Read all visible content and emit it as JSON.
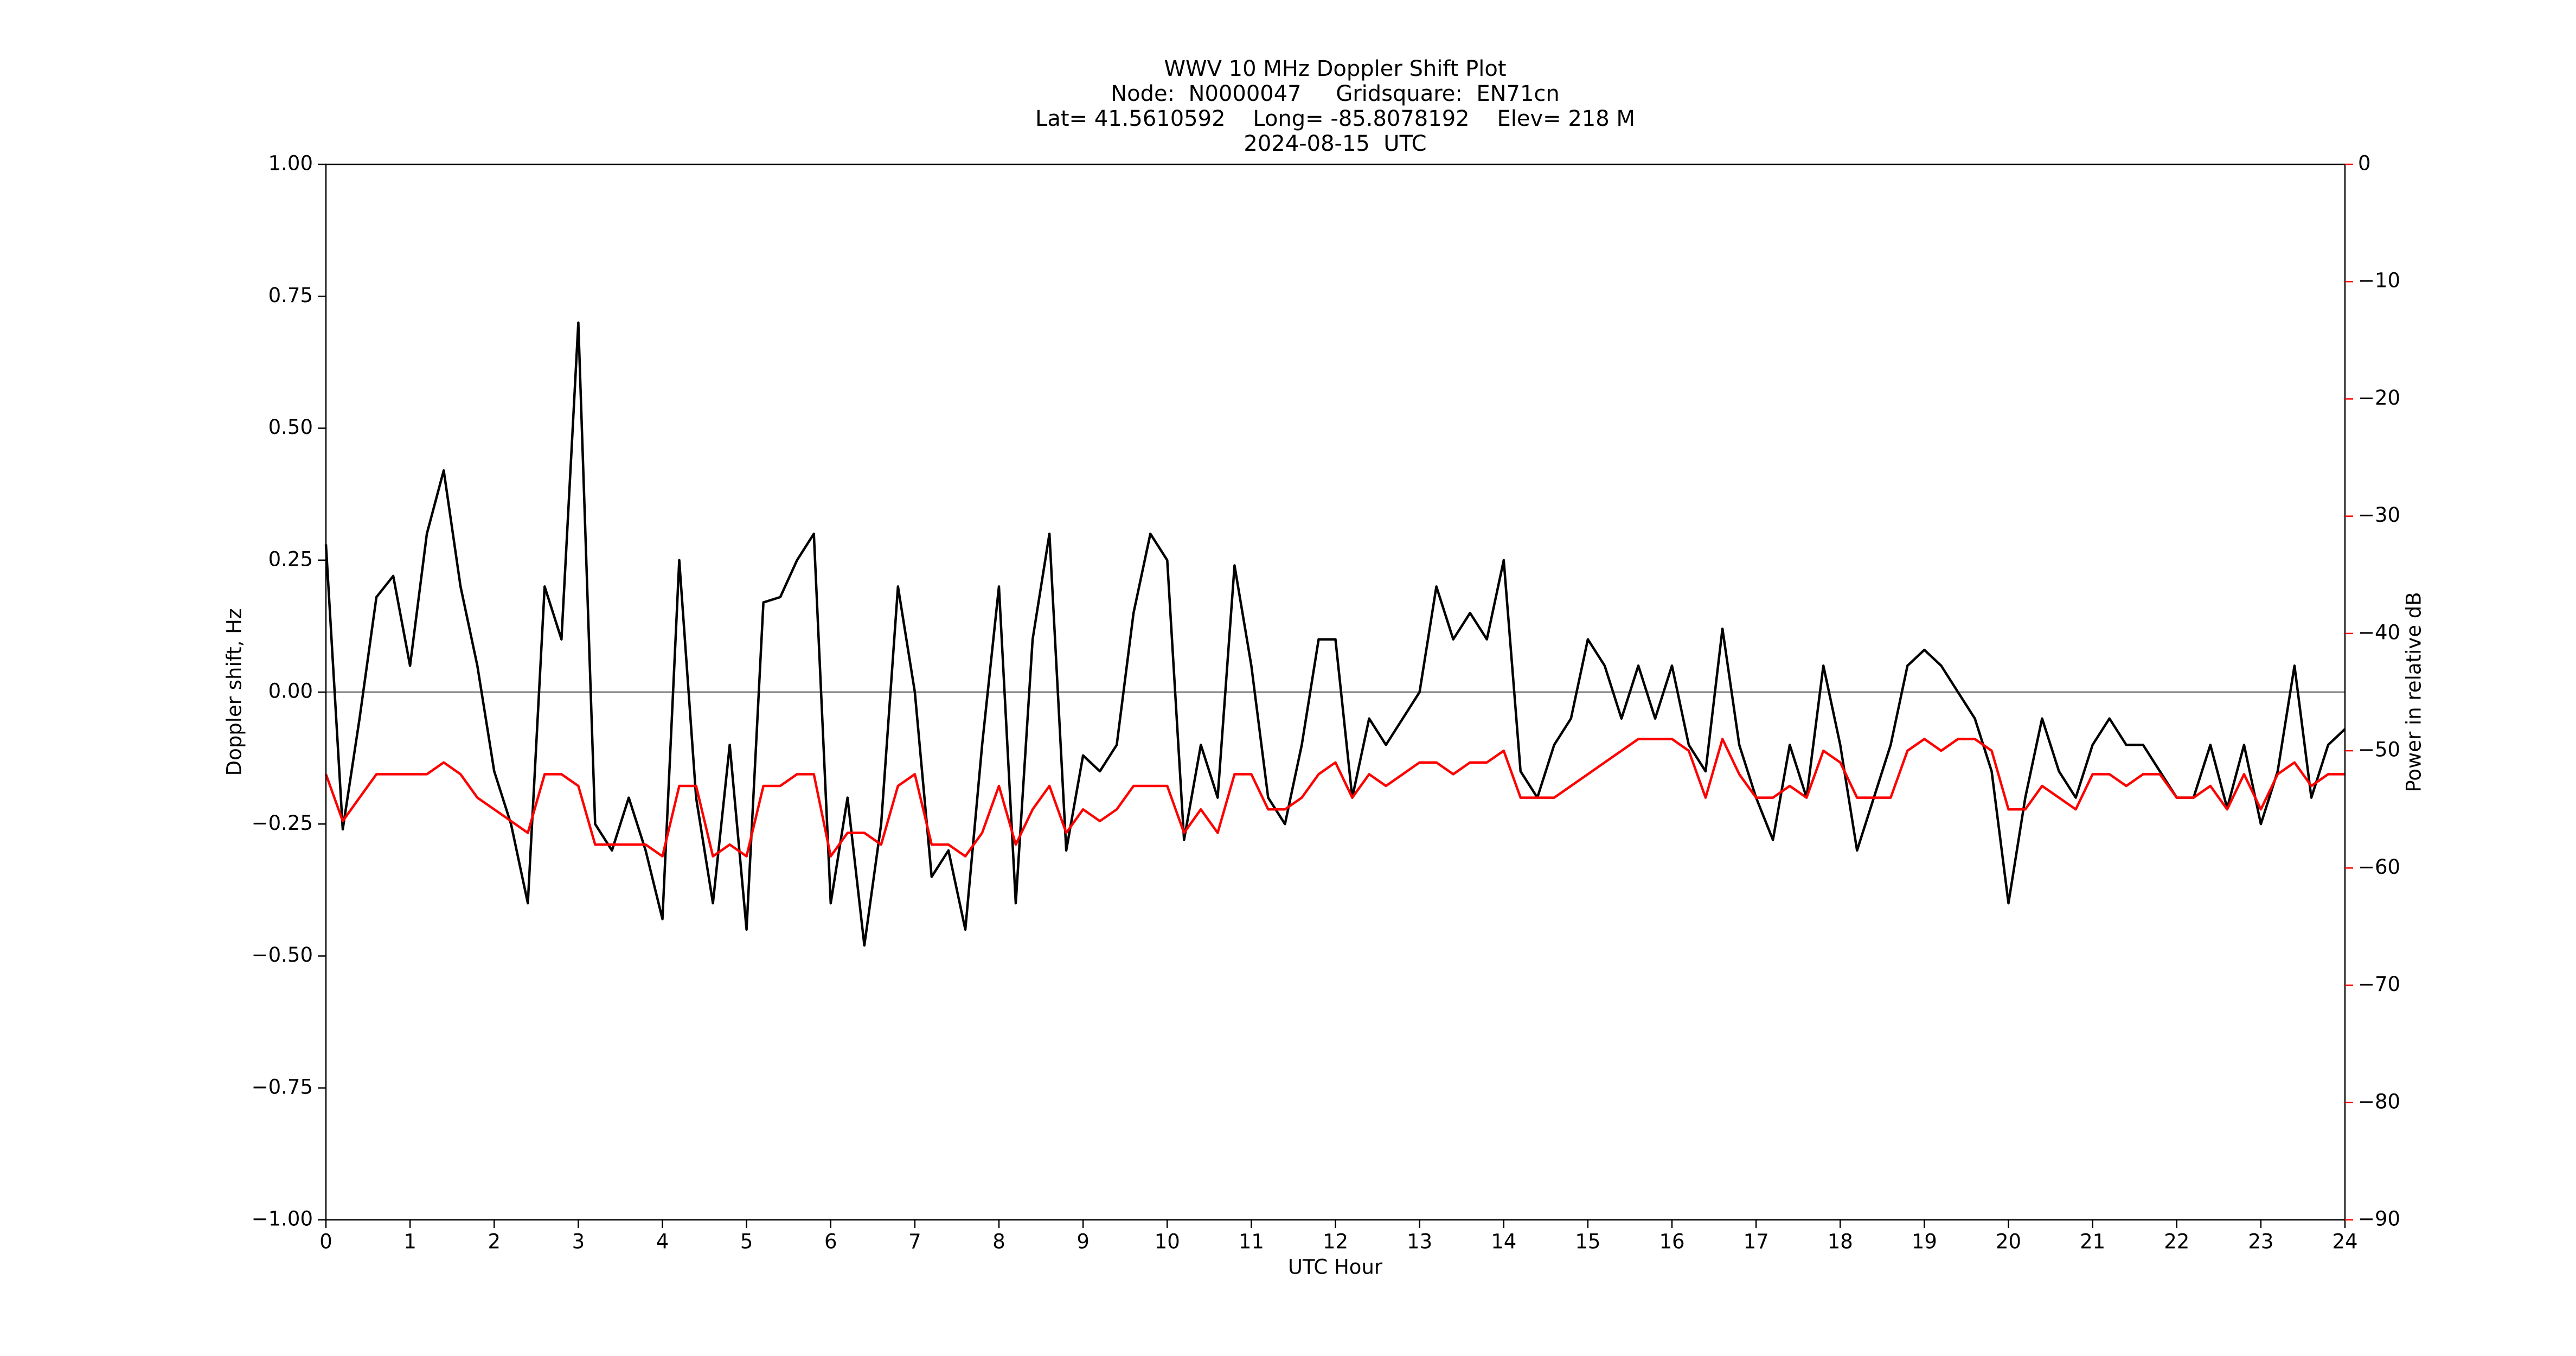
{
  "chart_data": {
    "type": "line",
    "title": [
      "WWV 10 MHz Doppler Shift Plot",
      "Node:  N0000047     Gridsquare:  EN71cn",
      "Lat= 41.5610592    Long= -85.8078192    Elev= 218 M",
      "2024-08-15  UTC"
    ],
    "xlabel": "UTC Hour",
    "ylabel": "Doppler shift, Hz",
    "y2label": "Power in relative dB",
    "y2_color": "#ff0000",
    "hline": 0,
    "hline_color": "#808080",
    "xlim": [
      0,
      24
    ],
    "xticks": [
      0,
      1,
      2,
      3,
      4,
      5,
      6,
      7,
      8,
      9,
      10,
      11,
      12,
      13,
      14,
      15,
      16,
      17,
      18,
      19,
      20,
      21,
      22,
      23,
      24
    ],
    "ylim": [
      -1,
      1
    ],
    "yticks": [
      {
        "value": -1,
        "label": "−1.00"
      },
      {
        "value": -0.75,
        "label": "−0.75"
      },
      {
        "value": -0.5,
        "label": "−0.50"
      },
      {
        "value": -0.25,
        "label": "−0.25"
      },
      {
        "value": 0,
        "label": "0.00"
      },
      {
        "value": 0.25,
        "label": "0.25"
      },
      {
        "value": 0.5,
        "label": "0.50"
      },
      {
        "value": 0.75,
        "label": "0.75"
      },
      {
        "value": 1,
        "label": "1.00"
      }
    ],
    "y2lim": [
      -90,
      0
    ],
    "y2ticks": [
      0,
      {
        "value": -10,
        "label": "−10"
      },
      {
        "value": -20,
        "label": "−20"
      },
      {
        "value": -30,
        "label": "−30"
      },
      {
        "value": -40,
        "label": "−40"
      },
      {
        "value": -50,
        "label": "−50"
      },
      {
        "value": -60,
        "label": "−60"
      },
      {
        "value": -70,
        "label": "−70"
      },
      {
        "value": -80,
        "label": "−80"
      },
      {
        "value": -90,
        "label": "−90"
      }
    ],
    "x": [
      0,
      0.2,
      0.4,
      0.6,
      0.8,
      1,
      1.2,
      1.4,
      1.6,
      1.8,
      2,
      2.2,
      2.4,
      2.6,
      2.8,
      3,
      3.2,
      3.4,
      3.6,
      3.8,
      4,
      4.2,
      4.4,
      4.6,
      4.8,
      5,
      5.2,
      5.4,
      5.6,
      5.8,
      6,
      6.2,
      6.4,
      6.6,
      6.8,
      7,
      7.2,
      7.4,
      7.6,
      7.8,
      8,
      8.2,
      8.4,
      8.6,
      8.8,
      9,
      9.2,
      9.4,
      9.6,
      9.8,
      10,
      10.2,
      10.4,
      10.6,
      10.8,
      11,
      11.2,
      11.4,
      11.6,
      11.8,
      12,
      12.2,
      12.4,
      12.6,
      12.8,
      13,
      13.2,
      13.4,
      13.6,
      13.8,
      14,
      14.2,
      14.4,
      14.6,
      14.8,
      15,
      15.2,
      15.4,
      15.6,
      15.8,
      16,
      16.2,
      16.4,
      16.6,
      16.8,
      17,
      17.2,
      17.4,
      17.6,
      17.8,
      18,
      18.2,
      18.4,
      18.6,
      18.8,
      19,
      19.2,
      19.4,
      19.6,
      19.8,
      20,
      20.2,
      20.4,
      20.6,
      20.8,
      21,
      21.2,
      21.4,
      21.6,
      21.8,
      22,
      22.2,
      22.4,
      22.6,
      22.8,
      23,
      23.2,
      23.4,
      23.6,
      23.8,
      24
    ],
    "series": [
      {
        "name": "Doppler shift",
        "color": "#000000",
        "values": [
          0.28,
          -0.26,
          -0.05,
          0.18,
          0.22,
          0.05,
          0.3,
          0.42,
          0.2,
          0.05,
          -0.15,
          -0.25,
          -0.4,
          0.2,
          0.1,
          0.7,
          -0.25,
          -0.3,
          -0.2,
          -0.3,
          -0.43,
          0.25,
          -0.2,
          -0.4,
          -0.1,
          -0.45,
          0.17,
          0.18,
          0.25,
          0.3,
          -0.4,
          -0.2,
          -0.48,
          -0.25,
          0.2,
          0,
          -0.35,
          -0.3,
          -0.45,
          -0.1,
          0.2,
          -0.4,
          0.1,
          0.3,
          -0.3,
          -0.12,
          -0.15,
          -0.1,
          0.15,
          0.3,
          0.25,
          -0.28,
          -0.1,
          -0.2,
          0.24,
          0.05,
          -0.2,
          -0.25,
          -0.1,
          0.1,
          0.1,
          -0.2,
          -0.05,
          -0.1,
          -0.05,
          0,
          0.2,
          0.1,
          0.15,
          0.1,
          0.25,
          -0.15,
          -0.2,
          -0.1,
          -0.05,
          0.1,
          0.05,
          -0.05,
          0.05,
          -0.05,
          0.05,
          -0.1,
          -0.15,
          0.12,
          -0.1,
          -0.2,
          -0.28,
          -0.1,
          -0.2,
          0.05,
          -0.1,
          -0.3,
          -0.2,
          -0.1,
          0.05,
          0.08,
          0.05,
          0,
          -0.05,
          -0.15,
          -0.4,
          -0.2,
          -0.05,
          -0.15,
          -0.2,
          -0.1,
          -0.05,
          -0.1,
          -0.1,
          -0.15,
          -0.2,
          -0.2,
          -0.1,
          -0.22,
          -0.1,
          -0.25,
          -0.15,
          0.05,
          -0.2,
          -0.1,
          -0.07
        ]
      },
      {
        "name": "Power",
        "color": "#ff0000",
        "axis": "y2",
        "values": [
          -52,
          -56,
          -54,
          -52,
          -52,
          -52,
          -52,
          -51,
          -52,
          -54,
          -55,
          -56,
          -57,
          -52,
          -52,
          -53,
          -58,
          -58,
          -58,
          -58,
          -59,
          -53,
          -53,
          -59,
          -58,
          -59,
          -53,
          -53,
          -52,
          -52,
          -59,
          -57,
          -57,
          -58,
          -53,
          -52,
          -58,
          -58,
          -59,
          -57,
          -53,
          -58,
          -55,
          -53,
          -57,
          -55,
          -56,
          -55,
          -53,
          -53,
          -53,
          -57,
          -55,
          -57,
          -52,
          -52,
          -55,
          -55,
          -54,
          -52,
          -51,
          -54,
          -52,
          -53,
          -52,
          -51,
          -51,
          -52,
          -51,
          -51,
          -50,
          -54,
          -54,
          -54,
          -53,
          -52,
          -51,
          -50,
          -49,
          -49,
          -49,
          -50,
          -54,
          -49,
          -52,
          -54,
          -54,
          -53,
          -54,
          -50,
          -51,
          -54,
          -54,
          -54,
          -50,
          -49,
          -50,
          -49,
          -49,
          -50,
          -55,
          -55,
          -53,
          -54,
          -55,
          -52,
          -52,
          -53,
          -52,
          -52,
          -54,
          -54,
          -53,
          -55,
          -52,
          -55,
          -52,
          -51,
          -53,
          -52,
          -52
        ]
      }
    ]
  }
}
